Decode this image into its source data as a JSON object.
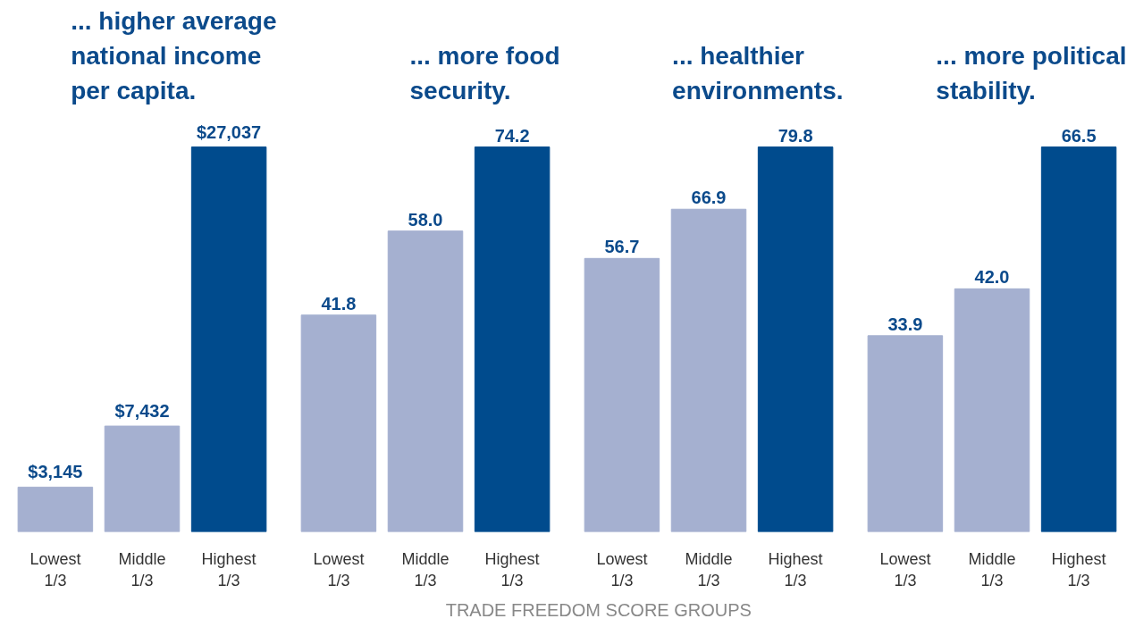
{
  "chart_data": [
    {
      "type": "bar",
      "title": "... higher average\nnational income\nper capita.",
      "categories": [
        "Lowest\n1/3",
        "Middle\n1/3",
        "Highest\n1/3"
      ],
      "values": [
        3145,
        7432,
        27037
      ],
      "colors": [
        "#a5b0d0",
        "#a5b0d0",
        "#004b8d"
      ],
      "value_labels": [
        "$3,145",
        "$7,432",
        "$27,037"
      ],
      "tick_labels": "x"
    },
    {
      "type": "bar",
      "title": "... more food\nsecurity.",
      "categories": [
        "Lowest\n1/3",
        "Middle\n1/3",
        "Highest\n1/3"
      ],
      "values": [
        41.8,
        58.0,
        74.2
      ],
      "colors": [
        "#a5b0d0",
        "#a5b0d0",
        "#004b8d"
      ],
      "value_labels": [
        "41.8",
        "58.0",
        "74.2"
      ],
      "tick_labels": "x"
    },
    {
      "type": "bar",
      "title": "... healthier\nenvironments.",
      "categories": [
        "Lowest\n1/3",
        "Middle\n1/3",
        "Highest\n1/3"
      ],
      "values": [
        56.7,
        66.9,
        79.8
      ],
      "colors": [
        "#a5b0d0",
        "#a5b0d0",
        "#004b8d"
      ],
      "value_labels": [
        "56.7",
        "66.9",
        "79.8"
      ],
      "tick_labels": "x"
    },
    {
      "type": "bar",
      "title": "... more political\nstability.",
      "categories": [
        "Lowest\n1/3",
        "Middle\n1/3",
        "Highest\n1/3"
      ],
      "values": [
        33.9,
        42.0,
        66.5
      ],
      "colors": [
        "#a5b0d0",
        "#a5b0d0",
        "#004b8d"
      ],
      "value_labels": [
        "33.9",
        "42.0",
        "66.5"
      ],
      "tick_labels": "x"
    },
    {
      "type": "other",
      "annotations": [
        "TRADE FREEDOM SCORE GROUPS"
      ]
    }
  ]
}
